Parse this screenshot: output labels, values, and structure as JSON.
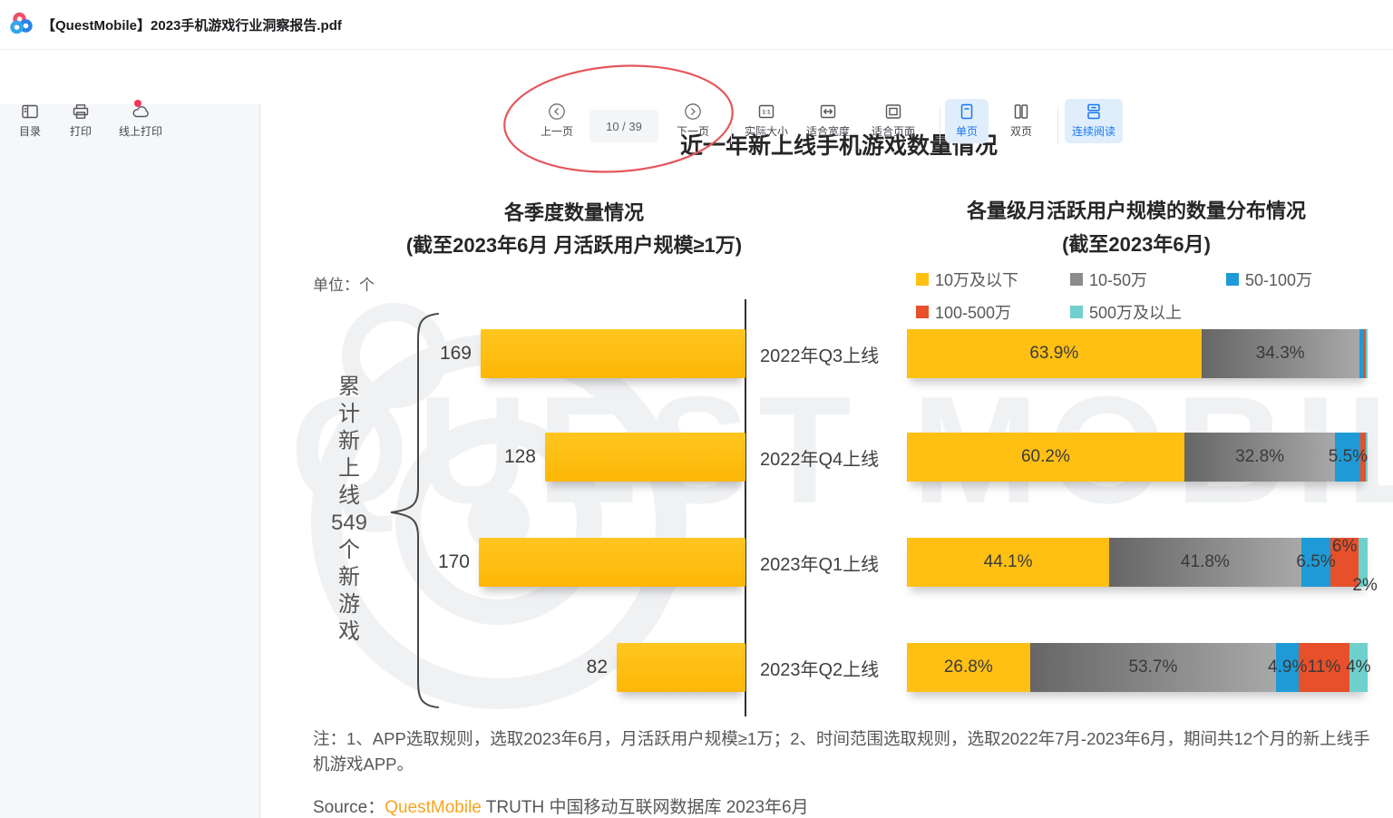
{
  "header": {
    "title": "【QuestMobile】2023手机游戏行业洞察报告.pdf"
  },
  "toolbar": {
    "catalog": "目录",
    "print": "打印",
    "online_print": "线上打印",
    "prev_page": "上一页",
    "page_indicator": "10 / 39",
    "next_page": "下一页",
    "actual_size": "实际大小",
    "actual_size_glyph": "1:1",
    "fit_width": "适合宽度",
    "fit_page": "适合页面",
    "single_page": "单页",
    "double_page": "双页",
    "continuous_reading": "连续阅读"
  },
  "page": {
    "main_title": "近一年新上线手机游戏数量情况",
    "left_chart_title": "各季度数量情况",
    "left_chart_subtitle": "(截至2023年6月 月活跃用户规模≥1万)",
    "unit": "单位：个",
    "brace_text_top": "累计新上线",
    "brace_text_num": "549",
    "brace_text_bottom": "个新游戏",
    "right_chart_title": "各量级月活跃用户规模的数量分布情况",
    "right_chart_subtitle": "(截至2023年6月)",
    "note": "注：1、APP选取规则，选取2023年6月，月活跃用户规模≥1万；2、时间范围选取规则，选取2022年7月-2023年6月，期间共12个月的新上线手机游戏APP。",
    "source_prefix": "Source：",
    "source_brand": "QuestMobile",
    "source_suffix": " TRUTH 中国移动互联网数据库 2023年6月",
    "watermark": "QUEST MOBILE"
  },
  "chart_data": [
    {
      "type": "bar",
      "orientation": "horizontal",
      "title": "各季度数量情况",
      "subtitle": "(截至2023年6月 月活跃用户规模≥1万)",
      "unit": "个",
      "categories": [
        "2022年Q3上线",
        "2022年Q4上线",
        "2023年Q1上线",
        "2023年Q2上线"
      ],
      "values": [
        169,
        128,
        170,
        82
      ],
      "annotation": "累计新上线549个新游戏",
      "bar_color": "#ffc013"
    },
    {
      "type": "bar",
      "stacked": true,
      "title": "各量级月活跃用户规模的数量分布情况",
      "subtitle": "(截至2023年6月)",
      "categories": [
        "2022年Q3上线",
        "2022年Q4上线",
        "2023年Q1上线",
        "2023年Q2上线"
      ],
      "legend_position": "top",
      "series": [
        {
          "name": "10万及以下",
          "color": "#ffc013",
          "values": [
            63.9,
            60.2,
            44.1,
            26.8
          ],
          "labels": [
            "63.9%",
            "60.2%",
            "44.1%",
            "26.8%"
          ]
        },
        {
          "name": "10-50万",
          "color": "#7f7f7f",
          "values": [
            34.3,
            32.8,
            41.8,
            53.7
          ],
          "labels": [
            "34.3%",
            "32.8%",
            "41.8%",
            "53.7%"
          ]
        },
        {
          "name": "50-100万",
          "color": "#1e9bd7",
          "values": [
            0.9,
            5.5,
            6.5,
            4.9
          ],
          "labels": [
            "",
            "5.5%",
            "6.5%",
            "4.9%"
          ]
        },
        {
          "name": "100-500万",
          "color": "#e7502a",
          "values": [
            0.6,
            1.2,
            6.0,
            11.0
          ],
          "labels": [
            "",
            "",
            "6%",
            "11%"
          ]
        },
        {
          "name": "500万及以上",
          "color": "#6fd1cd",
          "values": [
            0.3,
            0.3,
            2.0,
            4.0
          ],
          "labels": [
            "",
            "",
            "2%",
            "4%"
          ]
        }
      ]
    }
  ]
}
